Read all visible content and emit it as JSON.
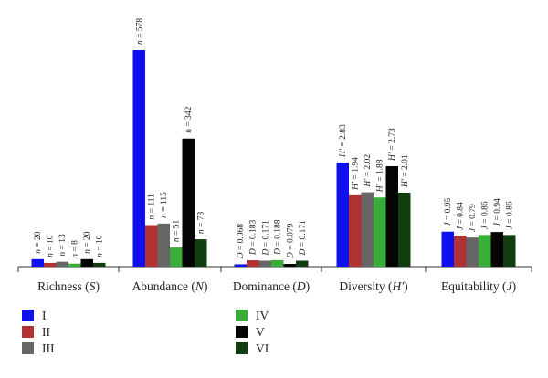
{
  "chart_data": {
    "type": "bar",
    "categories": [
      "Richness (S)",
      "Abundance (N)",
      "Dominance (D)",
      "Diversity (H')",
      "Equitability (J)"
    ],
    "category_labels": [
      {
        "name": "Richness",
        "symbol": "S"
      },
      {
        "name": "Abundance",
        "symbol": "N"
      },
      {
        "name": "Dominance",
        "symbol": "D"
      },
      {
        "name": "Diversity",
        "symbol": "H′"
      },
      {
        "name": "Equitability",
        "symbol": "J"
      }
    ],
    "series": [
      {
        "name": "I",
        "color": "#1010ee"
      },
      {
        "name": "II",
        "color": "#b03232"
      },
      {
        "name": "III",
        "color": "#666666"
      },
      {
        "name": "IV",
        "color": "#3aac3a"
      },
      {
        "name": "V",
        "color": "#050505"
      },
      {
        "name": "VI",
        "color": "#103e10"
      }
    ],
    "groups": [
      {
        "prefix": "n",
        "values": [
          20,
          10,
          13,
          8,
          20,
          10
        ],
        "labels": [
          "20",
          "10",
          "13",
          "8",
          "20",
          "10"
        ]
      },
      {
        "prefix": "n",
        "values": [
          578,
          111,
          115,
          51,
          342,
          73
        ],
        "labels": [
          "578",
          "111",
          "115",
          "51",
          "342",
          "73"
        ]
      },
      {
        "prefix": "D",
        "values": [
          0.068,
          0.183,
          0.171,
          0.188,
          0.079,
          0.171
        ],
        "labels": [
          "0.068",
          "0.183",
          "0.171",
          "0.188",
          "0.079",
          "0.171"
        ]
      },
      {
        "prefix": "H′",
        "values": [
          2.83,
          1.94,
          2.02,
          1.88,
          2.73,
          2.01
        ],
        "labels": [
          "2.83",
          "1.94",
          "2.02",
          "1.88",
          "2.73",
          "2.01"
        ]
      },
      {
        "prefix": "J",
        "values": [
          0.95,
          0.84,
          0.79,
          0.86,
          0.94,
          0.86
        ],
        "labels": [
          "0.95",
          "0.84",
          "0.79",
          "0.86",
          "0.94",
          "0.86"
        ]
      }
    ],
    "legend": {
      "position": "bottom-left"
    },
    "grid": false
  }
}
